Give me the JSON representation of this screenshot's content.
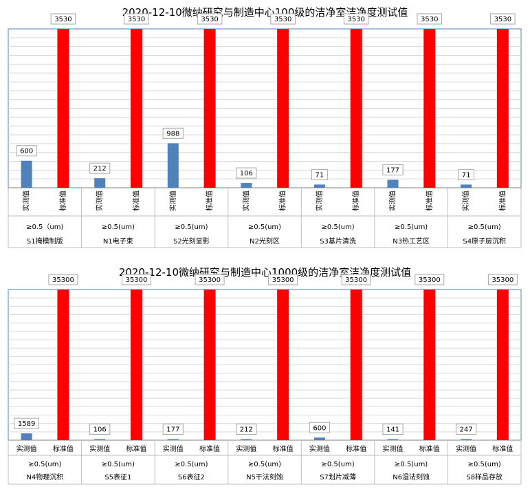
{
  "chart_data": [
    {
      "type": "bar",
      "title": "2020-12-10微纳研究与制造中心100级的洁净室洁净度测试值",
      "bar_labels": [
        "实测值",
        "标准值"
      ],
      "groups": [
        {
          "name": "S1掩模制版",
          "size": "≥0.5（um)",
          "measured": 600,
          "standard": 3530
        },
        {
          "name": "N1电子束",
          "size": "≥0.5(um)",
          "measured": 212,
          "standard": 3530
        },
        {
          "name": "S2光刻显影",
          "size": "≥0.5(um)",
          "measured": 988,
          "standard": 3530
        },
        {
          "name": "N2光刻区",
          "size": "≥0.5(um)",
          "measured": 106,
          "standard": 3530
        },
        {
          "name": "S3基片清洗",
          "size": "≥0.5(um)",
          "measured": 71,
          "standard": 3530
        },
        {
          "name": "N3热工艺区",
          "size": "≥0.5(um)",
          "measured": 177,
          "standard": 3530
        },
        {
          "name": "S4原子层沉积",
          "size": "≥0.5(um)",
          "measured": 71,
          "standard": 3530
        }
      ],
      "ylim": [
        0,
        3530
      ],
      "grid": true,
      "colors": {
        "measured": "#4f81bd",
        "standard": "#ff0000",
        "grid": "#d9d9d9",
        "border": "#4f81bd"
      }
    },
    {
      "type": "bar",
      "title": "2020-12-10微纳研究与制造中心1000级的洁净室洁净度测试值",
      "bar_labels": [
        "实测值",
        "标准值"
      ],
      "groups": [
        {
          "name": "N4物理沉积",
          "size": "≥0.5(um)",
          "measured": 1589,
          "standard": 35300
        },
        {
          "name": "S5表征1",
          "size": "≥0.5(um)",
          "measured": 106,
          "standard": 35300
        },
        {
          "name": "S6表征2",
          "size": "≥0.5(um)",
          "measured": 177,
          "standard": 35300
        },
        {
          "name": "N5干法刻蚀",
          "size": "≥0.5(um)",
          "measured": 212,
          "standard": 35300
        },
        {
          "name": "S7划片减薄",
          "size": "≥0.5(um)",
          "measured": 600,
          "standard": 35300
        },
        {
          "name": "N6湿法刻蚀",
          "size": "≥0.5(um)",
          "measured": 141,
          "standard": 35300
        },
        {
          "name": "S8样品存放",
          "size": "≥0.5(um)",
          "measured": 247,
          "standard": 35300
        }
      ],
      "ylim": [
        0,
        35300
      ],
      "grid": true,
      "colors": {
        "measured": "#4f81bd",
        "standard": "#ff0000",
        "grid": "#d9d9d9",
        "border": "#4f81bd"
      }
    }
  ]
}
